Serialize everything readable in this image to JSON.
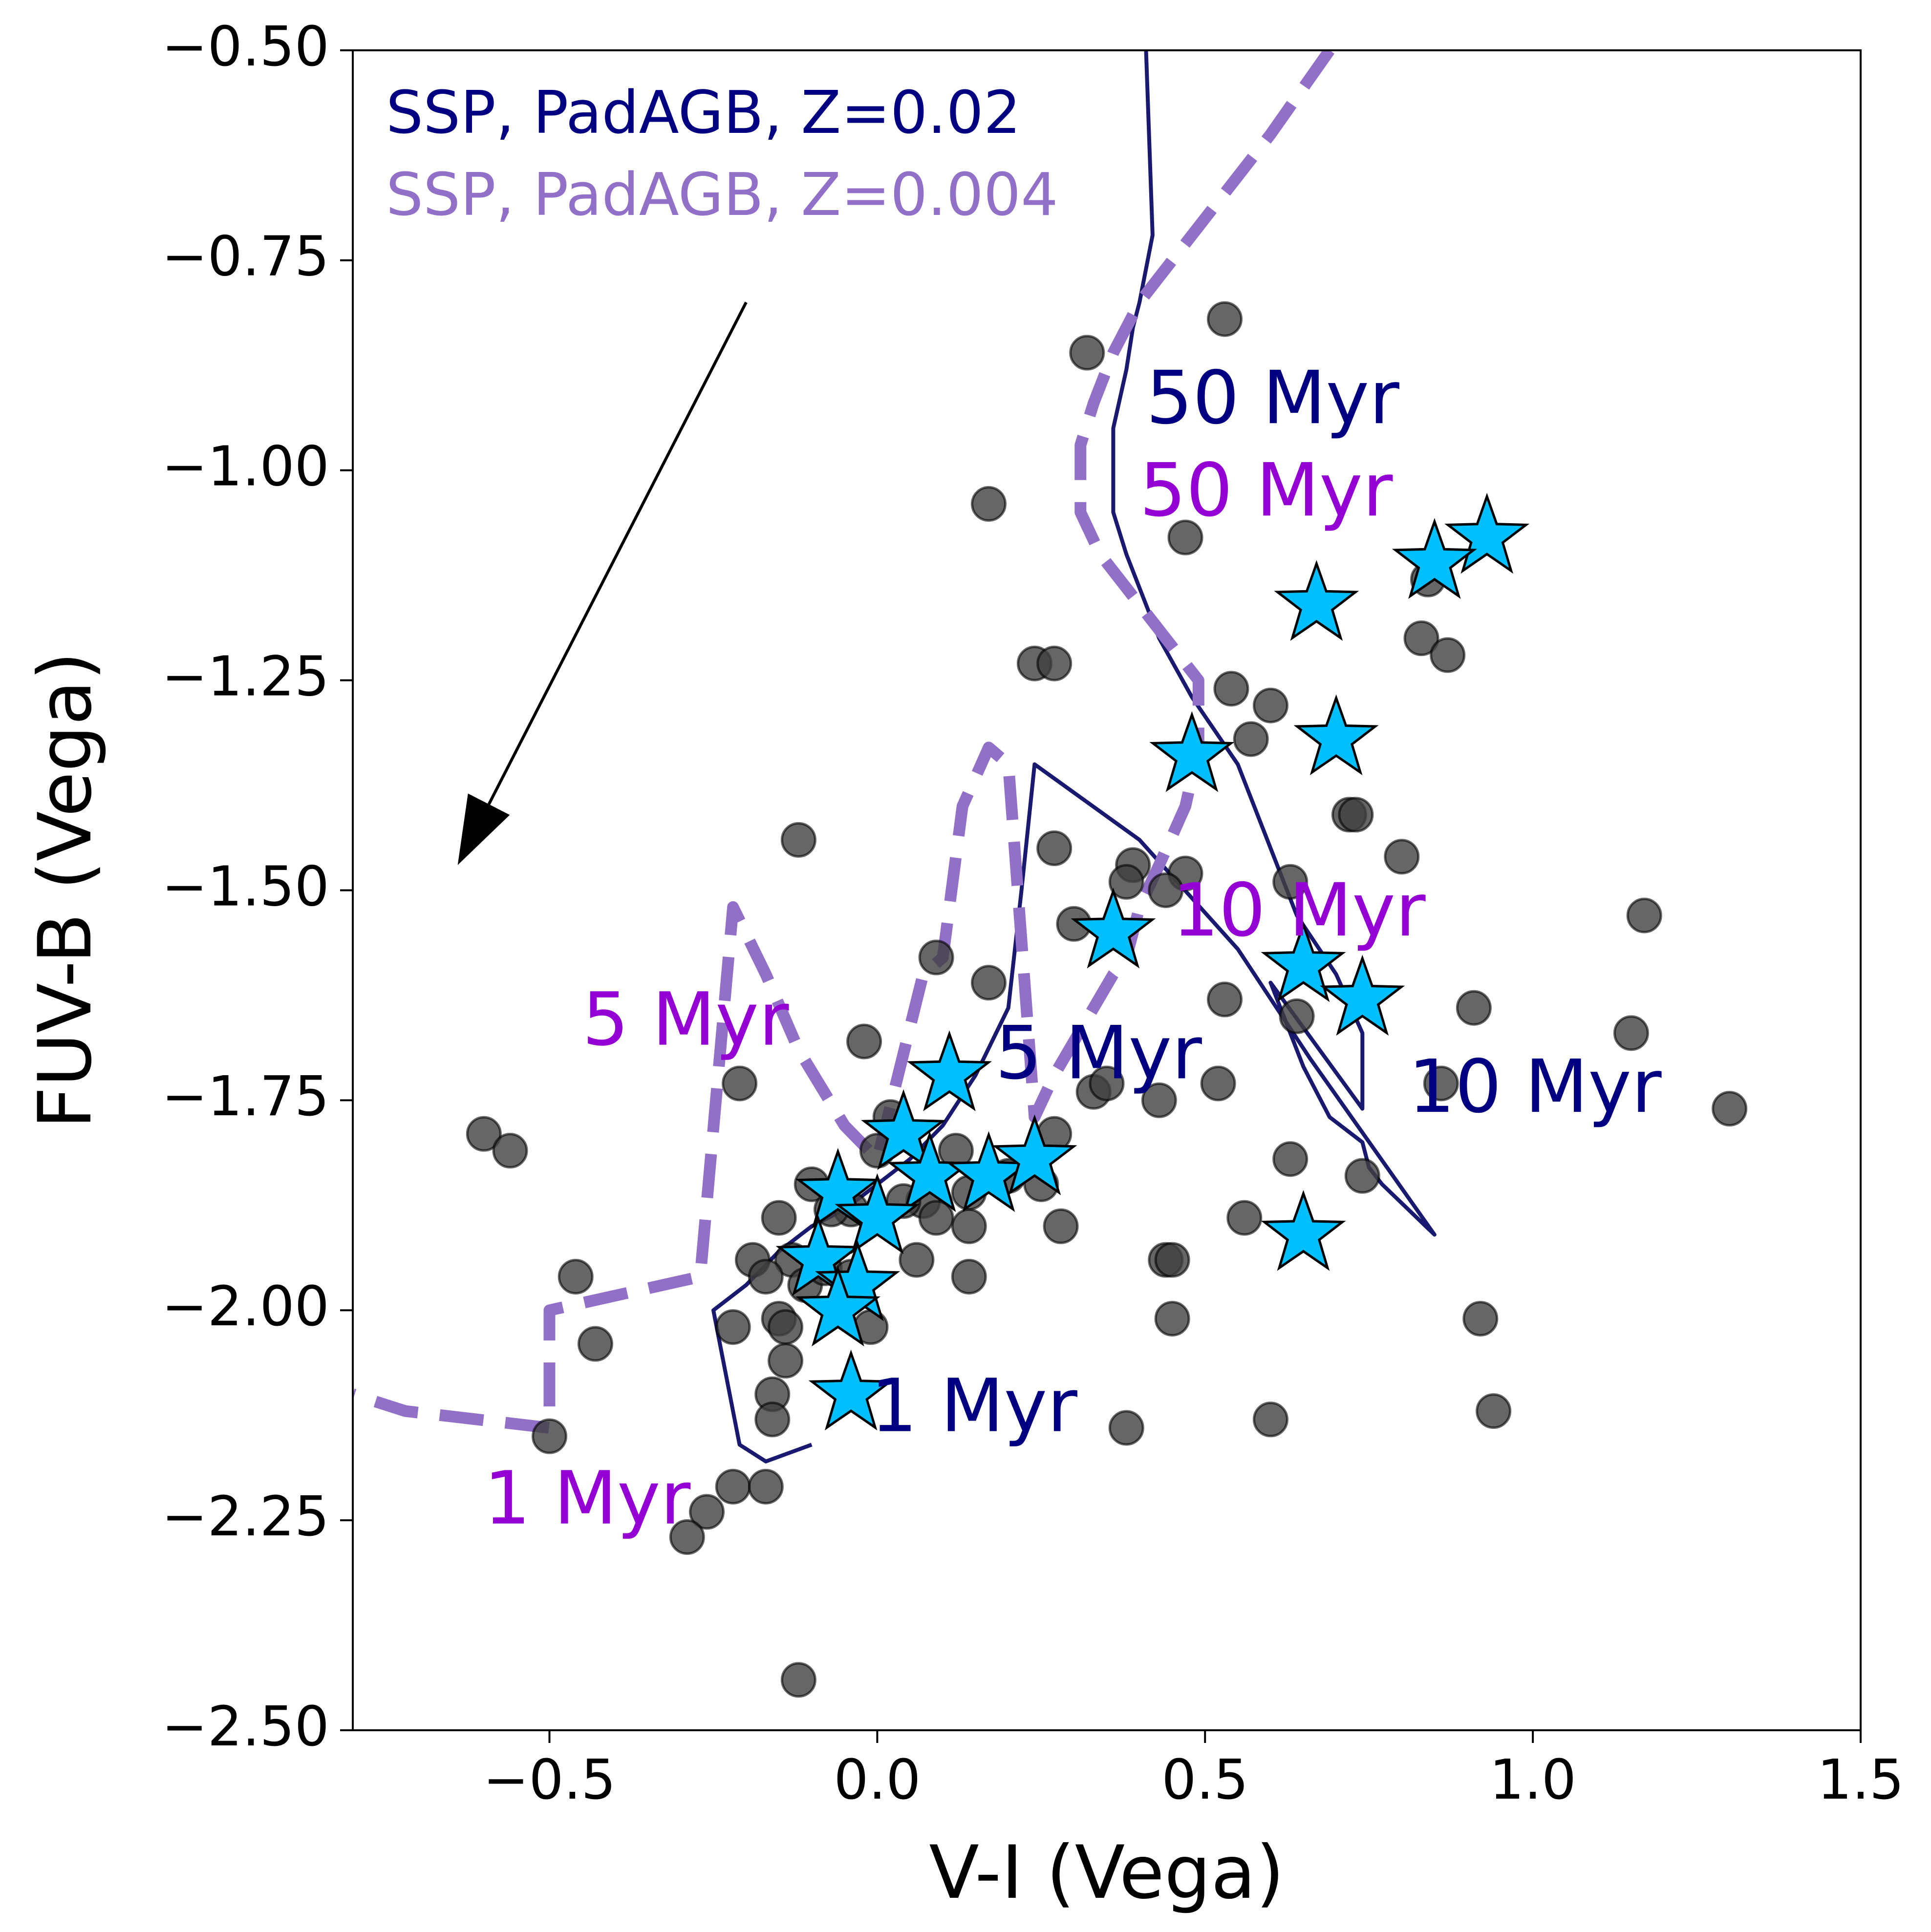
{
  "chart_data": {
    "type": "scatter",
    "xlabel": "V-I (Vega)",
    "ylabel": "FUV-B (Vega)",
    "xlim": [
      -0.8,
      1.5
    ],
    "ylim": [
      -2.5,
      -0.5
    ],
    "y_inverted": true,
    "xticks": [
      -0.5,
      0.0,
      0.5,
      1.0,
      1.5
    ],
    "xtick_labels": [
      "−0.5",
      "0.0",
      "0.5",
      "1.0",
      "1.5"
    ],
    "yticks": [
      -0.5,
      -0.75,
      -1.0,
      -1.25,
      -1.5,
      -1.75,
      -2.0,
      -2.25,
      -2.5
    ],
    "ytick_labels": [
      "−0.50",
      "−0.75",
      "−1.00",
      "−1.25",
      "−1.50",
      "−1.75",
      "−2.00",
      "−2.25",
      "−2.50"
    ],
    "grid": false,
    "legend_position": "top-left",
    "colors": {
      "track_solar": "#191970",
      "track_low_z": "#9370c8",
      "label_solar": "#000080",
      "label_low_z": "#9400d3",
      "circles": "#404040",
      "stars": "#00bfff",
      "arrow": "#000000"
    },
    "series": [
      {
        "name": "SSP, PadAGB, Z=0.02",
        "kind": "line",
        "style": "solid",
        "x": [
          0.41,
          0.42,
          0.4,
          0.39,
          0.38,
          0.36,
          0.36,
          0.38,
          0.43,
          0.48,
          0.55,
          0.6,
          0.64,
          0.7,
          0.74,
          0.74,
          0.6,
          0.62,
          0.65,
          0.69,
          0.74,
          0.75,
          0.77,
          0.85,
          0.66,
          0.55,
          0.4,
          0.24,
          0.22,
          0.2,
          0.15,
          0.1,
          0.05,
          0.0,
          -0.05,
          -0.1,
          -0.15,
          -0.2,
          -0.25,
          -0.21,
          -0.17,
          -0.1
        ],
        "y": [
          -0.5,
          -0.72,
          -0.8,
          -0.83,
          -0.88,
          -0.95,
          -1.05,
          -1.1,
          -1.2,
          -1.27,
          -1.35,
          -1.45,
          -1.53,
          -1.6,
          -1.67,
          -1.76,
          -1.61,
          -1.65,
          -1.71,
          -1.77,
          -1.8,
          -1.83,
          -1.85,
          -1.91,
          -1.7,
          -1.57,
          -1.44,
          -1.35,
          -1.5,
          -1.64,
          -1.72,
          -1.78,
          -1.82,
          -1.85,
          -1.88,
          -1.9,
          -1.93,
          -1.97,
          -2.0,
          -2.16,
          -2.18,
          -2.16
        ]
      },
      {
        "name": "SSP, PadAGB, Z=0.004",
        "kind": "line",
        "style": "dashed",
        "x": [
          0.69,
          0.6,
          0.52,
          0.45,
          0.4,
          0.36,
          0.33,
          0.31,
          0.31,
          0.34,
          0.39,
          0.44,
          0.49,
          0.49,
          0.47,
          0.43,
          0.4,
          0.38,
          0.36,
          0.33,
          0.3,
          0.27,
          0.24,
          0.2,
          0.17,
          0.13,
          0.1,
          0.07,
          0.0,
          -0.05,
          -0.12,
          -0.17,
          -0.22,
          -0.27,
          -0.5,
          -0.5,
          -0.72,
          -0.8
        ],
        "y": [
          -0.5,
          -0.6,
          -0.68,
          -0.75,
          -0.8,
          -0.86,
          -0.92,
          -0.97,
          -1.05,
          -1.1,
          -1.15,
          -1.2,
          -1.25,
          -1.33,
          -1.4,
          -1.47,
          -1.52,
          -1.58,
          -1.6,
          -1.64,
          -1.68,
          -1.72,
          -1.77,
          -1.35,
          -1.33,
          -1.4,
          -1.58,
          -1.6,
          -1.82,
          -1.78,
          -1.69,
          -1.6,
          -1.52,
          -1.96,
          -2.0,
          -2.14,
          -2.12,
          -2.1
        ]
      },
      {
        "kind": "scatter",
        "marker": "circle",
        "x": [
          0.53,
          0.32,
          0.17,
          0.47,
          0.84,
          0.83,
          0.87,
          0.24,
          0.27,
          0.54,
          0.6,
          0.57,
          0.72,
          0.73,
          0.8,
          -0.12,
          0.27,
          0.39,
          0.38,
          0.47,
          0.44,
          0.63,
          1.17,
          0.09,
          0.17,
          0.53,
          0.64,
          0.3,
          0.91,
          -0.21,
          -0.02,
          1.15,
          0.02,
          0.33,
          0.35,
          0.43,
          0.52,
          0.86,
          1.3,
          -0.6,
          -0.56,
          0.0,
          0.27,
          0.2,
          0.12,
          0.14,
          0.07,
          0.25,
          0.63,
          0.74,
          0.56,
          -0.15,
          -0.1,
          -0.04,
          -0.07,
          0.09,
          0.04,
          0.28,
          0.14,
          0.44,
          0.45,
          -0.13,
          -0.46,
          -0.19,
          -0.15,
          0.06,
          0.14,
          -0.11,
          -0.17,
          -0.08,
          -0.04,
          -0.01,
          -0.14,
          -0.14,
          -0.43,
          -0.22,
          0.45,
          0.92,
          0.94,
          -0.5,
          0.38,
          0.6,
          -0.16,
          -0.22,
          -0.17,
          -0.26,
          -0.29,
          -0.12,
          -0.16
        ],
        "y": [
          -0.82,
          -0.86,
          -1.04,
          -1.08,
          -1.13,
          -1.2,
          -1.22,
          -1.23,
          -1.23,
          -1.26,
          -1.28,
          -1.32,
          -1.41,
          -1.41,
          -1.46,
          -1.44,
          -1.45,
          -1.47,
          -1.49,
          -1.48,
          -1.5,
          -1.49,
          -1.53,
          -1.58,
          -1.61,
          -1.63,
          -1.65,
          -1.54,
          -1.64,
          -1.73,
          -1.68,
          -1.67,
          -1.77,
          -1.74,
          -1.73,
          -1.75,
          -1.73,
          -1.73,
          -1.76,
          -1.79,
          -1.81,
          -1.81,
          -1.79,
          -1.84,
          -1.81,
          -1.86,
          -1.87,
          -1.85,
          -1.82,
          -1.84,
          -1.89,
          -1.89,
          -1.85,
          -1.88,
          -1.88,
          -1.89,
          -1.87,
          -1.9,
          -1.9,
          -1.94,
          -1.94,
          -1.94,
          -1.96,
          -1.94,
          -2.01,
          -1.94,
          -1.96,
          -1.97,
          -1.96,
          -1.95,
          -1.96,
          -2.02,
          -2.02,
          -2.06,
          -2.04,
          -2.02,
          -2.01,
          -2.01,
          -2.12,
          -2.15,
          -2.14,
          -2.13,
          -2.1,
          -2.21,
          -2.21,
          -2.24,
          -2.27,
          -2.44,
          -2.13
        ]
      },
      {
        "kind": "scatter",
        "marker": "star",
        "x": [
          0.93,
          0.85,
          0.67,
          0.7,
          0.48,
          0.36,
          0.65,
          0.74,
          0.65,
          0.11,
          0.04,
          0.08,
          0.17,
          0.24,
          -0.06,
          -0.09,
          0.0,
          -0.03,
          -0.06,
          -0.04
        ],
        "y": [
          -1.08,
          -1.11,
          -1.16,
          -1.32,
          -1.34,
          -1.55,
          -1.59,
          -1.63,
          -1.91,
          -1.72,
          -1.79,
          -1.84,
          -1.84,
          -1.82,
          -1.86,
          -1.94,
          -1.89,
          -1.97,
          -2.0,
          -2.1
        ]
      }
    ],
    "annotations": [
      {
        "text": "50 Myr",
        "x": 0.41,
        "y": -0.92,
        "color_key": "label_solar"
      },
      {
        "text": "50 Myr",
        "x": 0.4,
        "y": -1.03,
        "color_key": "label_low_z"
      },
      {
        "text": "10 Myr",
        "x": 0.45,
        "y": -1.53,
        "color_key": "label_low_z"
      },
      {
        "text": "5 Myr",
        "x": -0.45,
        "y": -1.66,
        "color_key": "label_low_z"
      },
      {
        "text": "5 Myr",
        "x": 0.18,
        "y": -1.7,
        "color_key": "label_solar"
      },
      {
        "text": "10 Myr",
        "x": 0.81,
        "y": -1.74,
        "color_key": "label_solar"
      },
      {
        "text": "1 Myr",
        "x": -0.01,
        "y": -2.12,
        "color_key": "label_solar"
      },
      {
        "text": "1 Myr",
        "x": -0.6,
        "y": -2.23,
        "color_key": "label_low_z"
      }
    ],
    "arrow": {
      "from": [
        -0.2,
        -0.8
      ],
      "to": [
        -0.64,
        -1.47
      ]
    }
  }
}
